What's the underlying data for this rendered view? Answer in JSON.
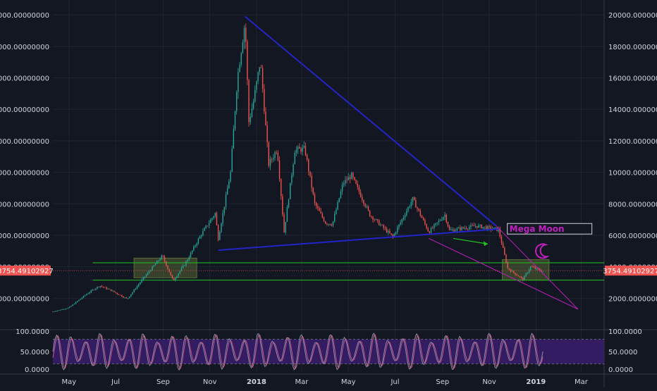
{
  "theme": {
    "background": "#131722",
    "grid": "#1f2433",
    "text": "#d1d4dc",
    "up_color": "#26a69a",
    "down_color": "#ef5350",
    "trendline_color": "#2424c8",
    "wedge_color": "#c020c0",
    "support_color": "#22c422",
    "price_line_color": "#ef5350",
    "stoch_fill": "#3b1d6e",
    "stoch_k": "#8a8fa8",
    "stoch_d": "#c45a8a"
  },
  "chart_data": {
    "type": "candlestick",
    "symbol": "BTC",
    "ylim": [
      0,
      20500
    ],
    "y_ticks": [
      2000,
      4000,
      6000,
      8000,
      10000,
      12000,
      14000,
      16000,
      18000,
      20000
    ],
    "y_tick_labels": [
      "2000.00000000",
      "4000.00000000",
      "6000.00000000",
      "8000.00000000",
      "10000.00000000",
      "12000.00000000",
      "14000.00000000",
      "16000.00000000",
      "18000.00000000",
      "20000.00000000"
    ],
    "x_tick_labels": [
      "May",
      "Jul",
      "Sep",
      "Nov",
      "2018",
      "Mar",
      "May",
      "Jul",
      "Sep",
      "Nov",
      "2019",
      "Mar"
    ],
    "x_tick_dates": [
      "2017-05-01",
      "2017-07-01",
      "2017-09-01",
      "2017-11-01",
      "2018-01-01",
      "2018-03-01",
      "2018-05-01",
      "2018-07-01",
      "2018-09-01",
      "2018-11-01",
      "2019-01-01",
      "2019-03-01"
    ],
    "x_range": [
      "2017-04-10",
      "2019-03-31"
    ],
    "last_price": 3754.49102927,
    "last_price_label": "3754.49102927",
    "price_path": [
      [
        "2017-04-10",
        1150
      ],
      [
        "2017-05-01",
        1400
      ],
      [
        "2017-05-25",
        2300
      ],
      [
        "2017-06-10",
        2800
      ],
      [
        "2017-06-25",
        2500
      ],
      [
        "2017-07-16",
        1950
      ],
      [
        "2017-08-05",
        3200
      ],
      [
        "2017-08-31",
        4700
      ],
      [
        "2017-09-14",
        3100
      ],
      [
        "2017-10-01",
        4300
      ],
      [
        "2017-10-20",
        6000
      ],
      [
        "2017-11-08",
        7400
      ],
      [
        "2017-11-12",
        5800
      ],
      [
        "2017-11-28",
        10000
      ],
      [
        "2017-12-07",
        16000
      ],
      [
        "2017-12-17",
        19600
      ],
      [
        "2017-12-22",
        13200
      ],
      [
        "2017-12-28",
        14500
      ],
      [
        "2018-01-06",
        17100
      ],
      [
        "2018-01-17",
        10500
      ],
      [
        "2018-01-28",
        11500
      ],
      [
        "2018-02-06",
        6200
      ],
      [
        "2018-02-20",
        11400
      ],
      [
        "2018-03-05",
        11500
      ],
      [
        "2018-03-18",
        8000
      ],
      [
        "2018-04-01",
        6800
      ],
      [
        "2018-04-10",
        6700
      ],
      [
        "2018-04-24",
        9300
      ],
      [
        "2018-05-05",
        9800
      ],
      [
        "2018-05-29",
        7300
      ],
      [
        "2018-06-28",
        5900
      ],
      [
        "2018-07-24",
        8300
      ],
      [
        "2018-08-14",
        6200
      ],
      [
        "2018-09-04",
        7300
      ],
      [
        "2018-09-10",
        6300
      ],
      [
        "2018-10-15",
        6600
      ],
      [
        "2018-11-13",
        6350
      ],
      [
        "2018-11-25",
        3900
      ],
      [
        "2018-12-15",
        3200
      ],
      [
        "2018-12-25",
        4000
      ],
      [
        "2019-01-10",
        3700
      ]
    ],
    "trendlines": [
      {
        "id": "upper-trendline",
        "from": [
          "2017-12-17",
          19900
        ],
        "to": [
          "2018-11-10",
          6600
        ]
      },
      {
        "id": "lower-trendline",
        "from": [
          "2017-11-12",
          5050
        ],
        "to": [
          "2018-11-14",
          6400
        ]
      },
      {
        "id": "wedge-upper",
        "from": [
          "2018-11-10",
          6600
        ],
        "to": [
          "2019-02-25",
          1300
        ]
      },
      {
        "id": "wedge-lower",
        "from": [
          "2018-08-14",
          5800
        ],
        "to": [
          "2019-02-25",
          1300
        ]
      }
    ],
    "horizontal_levels": [
      {
        "id": "resistance-level",
        "value": 4250,
        "from": "2017-06-01"
      },
      {
        "id": "support-level",
        "value": 3150,
        "from": "2017-06-01"
      }
    ],
    "zones": [
      {
        "id": "zone-2017",
        "from": "2017-07-25",
        "to": "2017-10-15",
        "low": 3300,
        "high": 4550
      },
      {
        "id": "zone-2018",
        "from": "2018-11-18",
        "to": "2019-01-18",
        "low": 3150,
        "high": 4450
      }
    ],
    "label": {
      "text": "Mega Moon",
      "date": "2018-12-01",
      "value": 6300
    },
    "arrow": {
      "from": [
        "2018-09-15",
        5800
      ],
      "to": [
        "2018-10-30",
        5450
      ]
    },
    "stochastic": {
      "ylim": [
        0,
        100
      ],
      "tick_labels": [
        "100.0000",
        "50.0000",
        "0.0000"
      ],
      "bands": [
        20,
        80
      ],
      "cycles": 34
    }
  }
}
